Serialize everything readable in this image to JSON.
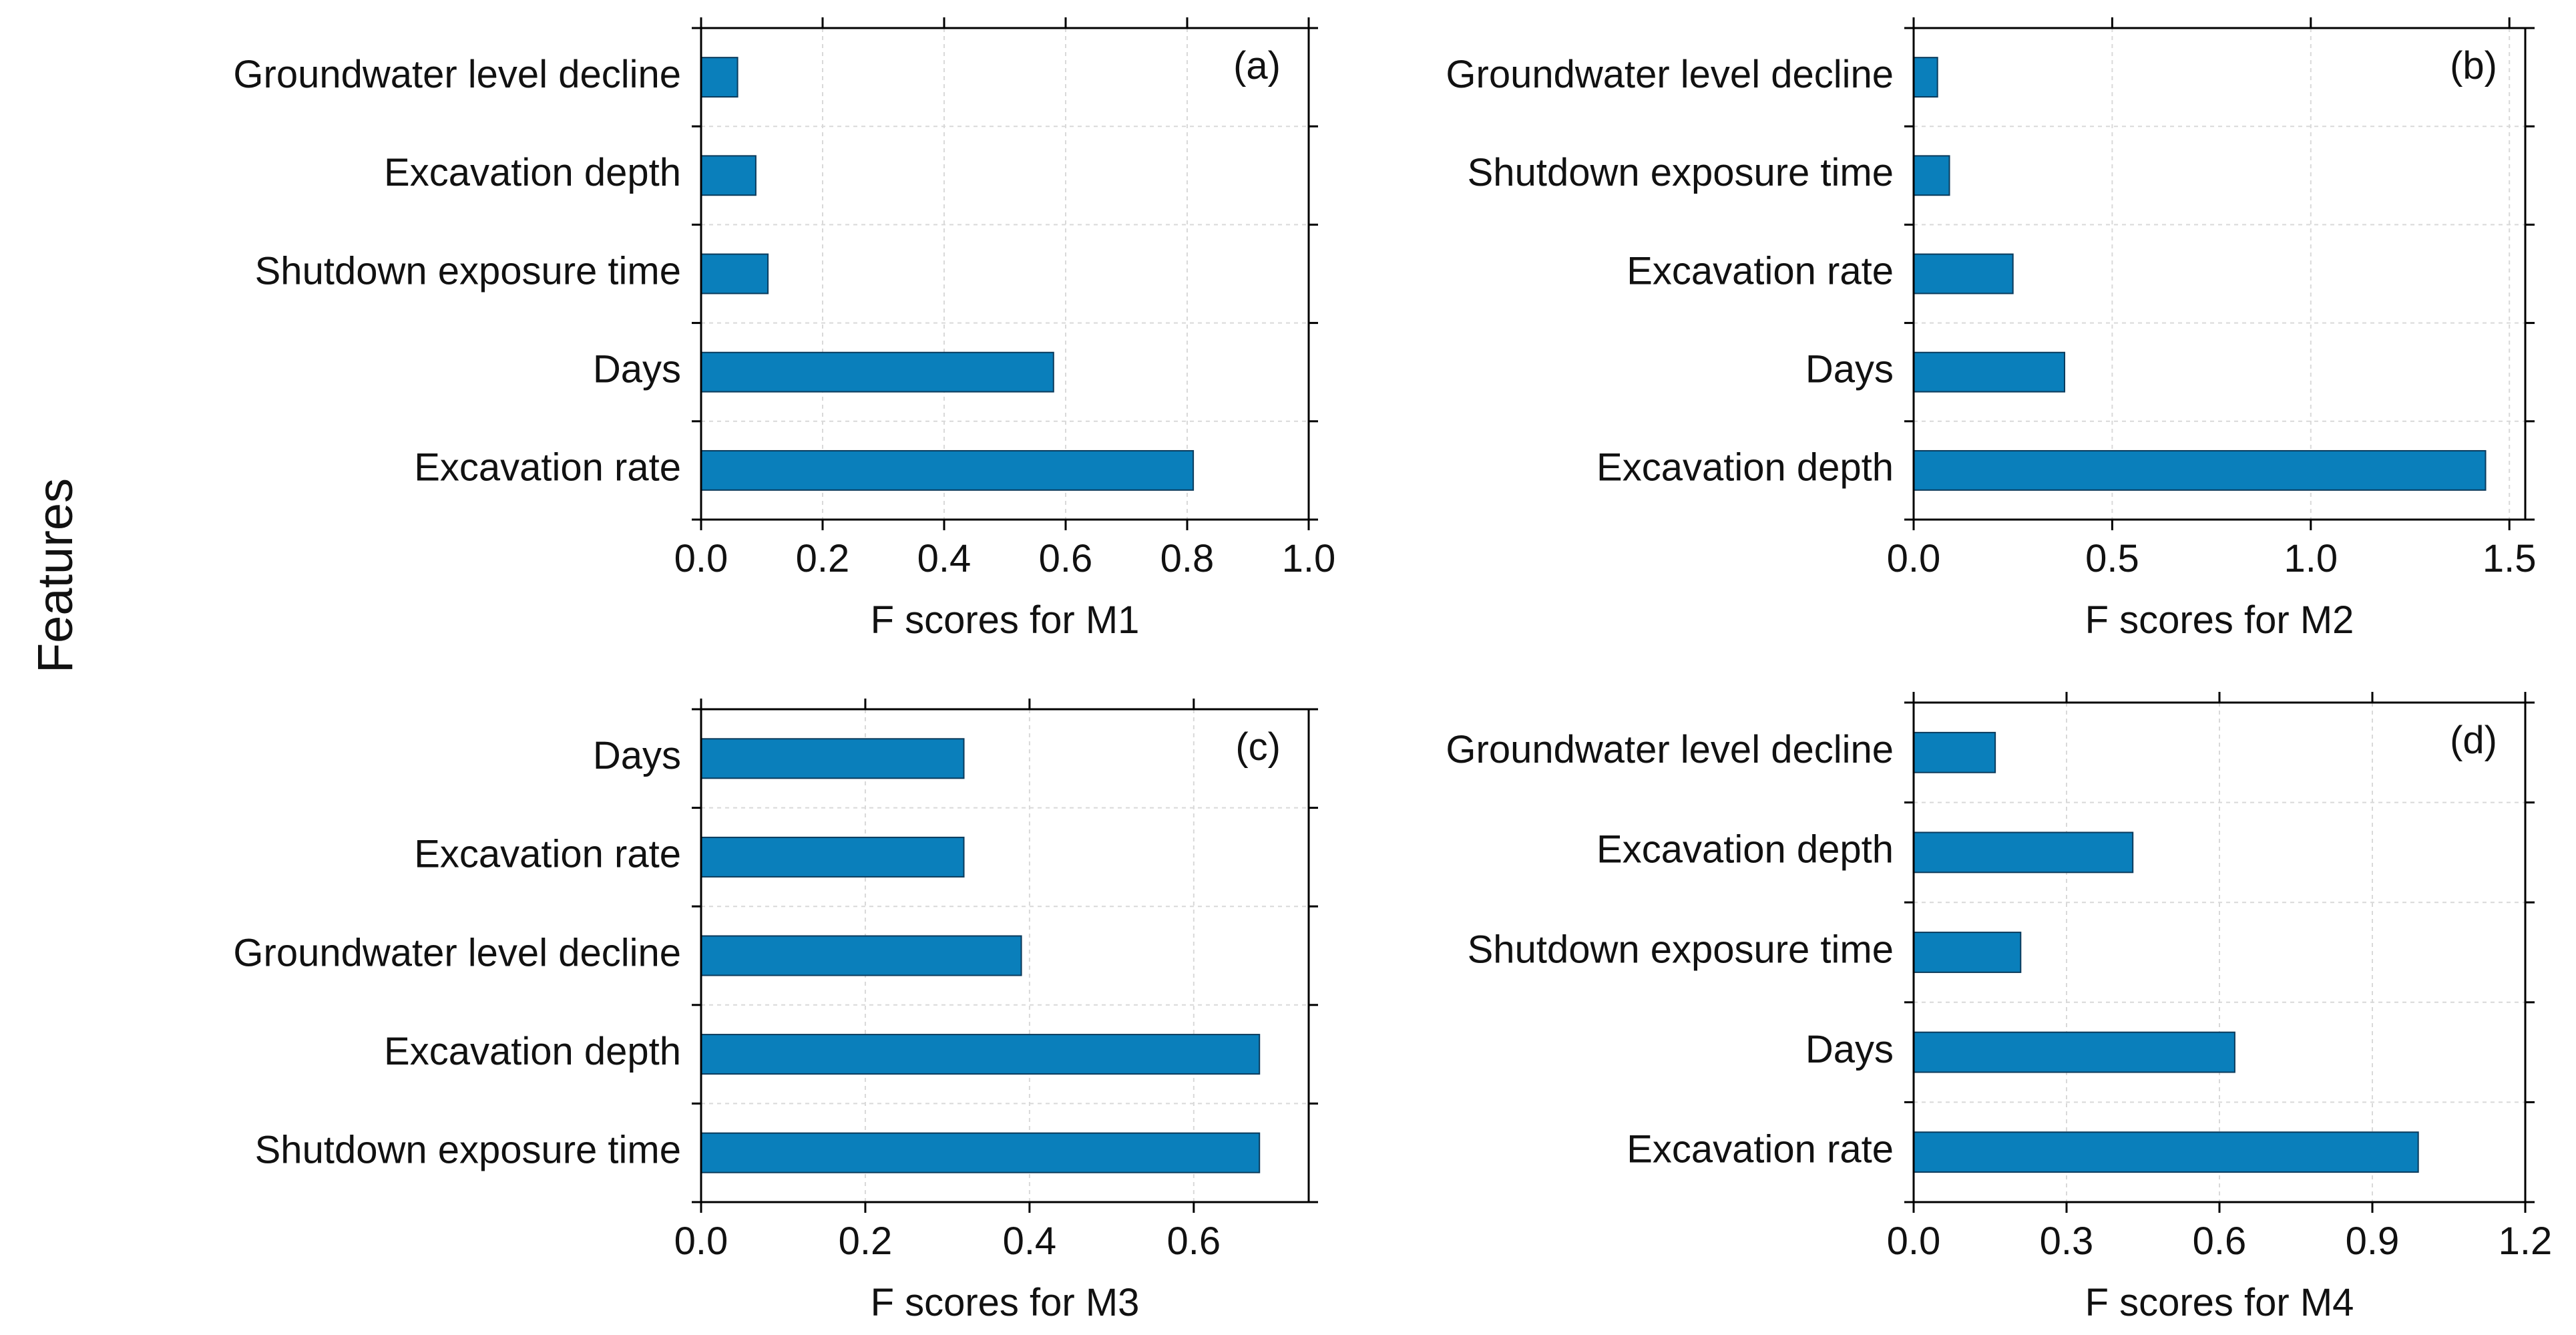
{
  "figure": {
    "shared_ylabel": "Features",
    "bar_color": "#0a7fbb",
    "bar_edge": "#0b3b5c"
  },
  "chart_data": [
    {
      "type": "bar",
      "orientation": "horizontal",
      "panel_label": "(a)",
      "categories": [
        "Excavation rate",
        "Days",
        "Shutdown exposure time",
        "Excavation depth",
        "Groundwater level decline"
      ],
      "values": [
        0.81,
        0.58,
        0.11,
        0.09,
        0.06
      ],
      "xlabel": "F scores for M1",
      "xlim": [
        0,
        1.0
      ],
      "xticks": [
        "0.0",
        "0.2",
        "0.4",
        "0.6",
        "0.8",
        "1.0"
      ],
      "grid": true
    },
    {
      "type": "bar",
      "orientation": "horizontal",
      "panel_label": "(b)",
      "categories": [
        "Excavation depth",
        "Days",
        "Excavation rate",
        "Shutdown exposure time",
        "Groundwater level decline"
      ],
      "values": [
        1.44,
        0.38,
        0.25,
        0.09,
        0.06
      ],
      "xlabel": "F scores for M2",
      "xlim": [
        0,
        1.54
      ],
      "xticks": [
        "0.0",
        "0.5",
        "1.0",
        "1.5"
      ],
      "grid": true
    },
    {
      "type": "bar",
      "orientation": "horizontal",
      "panel_label": "(c)",
      "categories": [
        "Shutdown exposure time",
        "Excavation depth",
        "Groundwater level decline",
        "Excavation rate",
        "Days"
      ],
      "values": [
        0.68,
        0.68,
        0.39,
        0.32,
        0.32
      ],
      "xlabel": "F scores for M3",
      "xlim": [
        0,
        0.74
      ],
      "xticks": [
        "0.0",
        "0.2",
        "0.4",
        "0.6"
      ],
      "grid": true
    },
    {
      "type": "bar",
      "orientation": "horizontal",
      "panel_label": "(d)",
      "categories": [
        "Excavation rate",
        "Days",
        "Shutdown exposure time",
        "Excavation depth",
        "Groundwater level decline"
      ],
      "values": [
        0.99,
        0.63,
        0.21,
        0.43,
        0.16
      ],
      "xlabel": "F scores for M4",
      "xlim": [
        0,
        1.2
      ],
      "xticks": [
        "0.0",
        "0.3",
        "0.6",
        "0.9",
        "1.2"
      ],
      "grid": true
    }
  ]
}
